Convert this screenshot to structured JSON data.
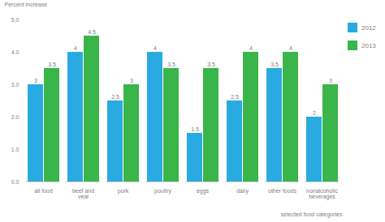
{
  "chart_data": {
    "type": "bar",
    "categories": [
      "all food",
      "beef and\nveal",
      "pork",
      "poultry",
      "eggs",
      "dairy",
      "other foods",
      "nonalcoholic\nbeverages"
    ],
    "series": [
      {
        "name": "2012",
        "color": "#29ABE2",
        "values": [
          3,
          4,
          2.5,
          4,
          1.5,
          2.5,
          3.5,
          2
        ]
      },
      {
        "name": "2013",
        "color": "#39B54A",
        "values": [
          3.5,
          4.5,
          3,
          3.5,
          3.5,
          4,
          4,
          3
        ]
      }
    ],
    "xlabel": "selected food categories",
    "ylabel": "Percent increase",
    "ylim": [
      0,
      5
    ],
    "yticks": [
      0,
      1,
      2,
      3,
      4,
      5
    ],
    "grid": false,
    "legend": "right",
    "data_labels": true
  }
}
